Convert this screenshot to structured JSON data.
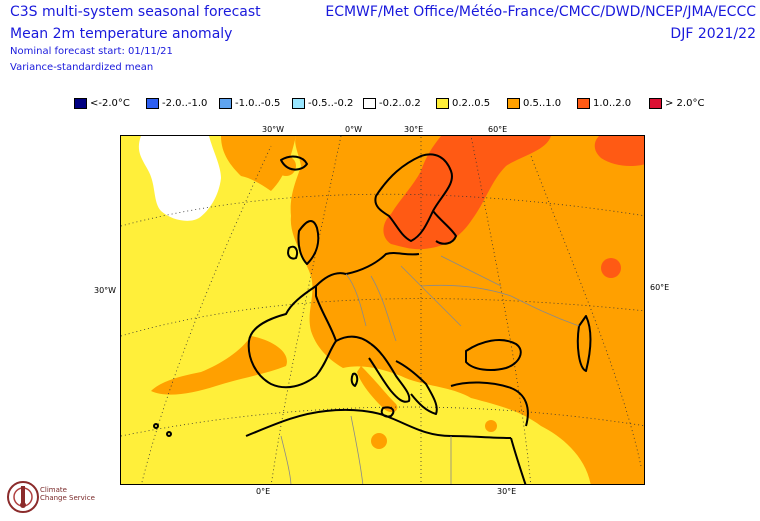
{
  "header": {
    "title_line1": "C3S multi-system seasonal forecast",
    "title_line2": "Mean 2m temperature anomaly",
    "subtitle_line1": "Nominal forecast start: 01/11/21",
    "subtitle_line2": "Variance-standardized mean",
    "organizations": "ECMWF/Met Office/Météo-France/CMCC/DWD/NCEP/JMA/ECCC",
    "season": "DJF 2021/22"
  },
  "legend": [
    {
      "label": "<-2.0°C",
      "color": "#000080"
    },
    {
      "label": "-2.0..-1.0",
      "color": "#2e5ff0"
    },
    {
      "label": "-1.0..-0.5",
      "color": "#5fa4f0"
    },
    {
      "label": "-0.5..-0.2",
      "color": "#99e6ff"
    },
    {
      "label": "-0.2..0.2",
      "color": "#ffffff"
    },
    {
      "label": "0.2..0.5",
      "color": "#ffef3a"
    },
    {
      "label": "0.5..1.0",
      "color": "#ffa000"
    },
    {
      "label": "1.0..2.0",
      "color": "#ff5a14"
    },
    {
      "label": "> 2.0°C",
      "color": "#dc0f32"
    }
  ],
  "graticule_labels": {
    "top": [
      "30°W",
      "0°W",
      "30°E",
      "60°E"
    ],
    "left": [
      "30°W"
    ],
    "right": [
      "60°E"
    ],
    "bottom": [
      "0°E",
      "30°E"
    ]
  },
  "logo": {
    "line1": "Climate",
    "line2": "Change Service"
  }
}
